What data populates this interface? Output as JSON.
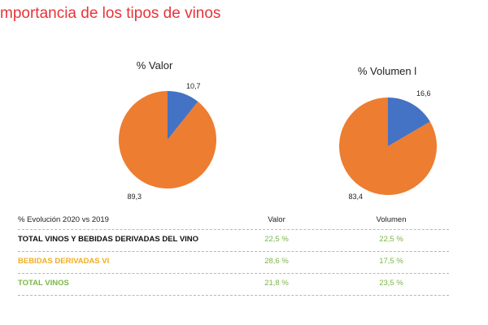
{
  "page": {
    "title": "mportancia de los tipos de vinos"
  },
  "colors": {
    "slice_small": "#4472c4",
    "slice_large": "#ed7d31",
    "title": "#e8333a",
    "green": "#7ab648",
    "amber": "#f0ad24"
  },
  "chart_data": [
    {
      "type": "pie",
      "title": "% Valor",
      "slices": [
        {
          "value": 10.7,
          "label": "10,7",
          "color": "#4472c4"
        },
        {
          "value": 89.3,
          "label": "89,3",
          "color": "#ed7d31"
        }
      ]
    },
    {
      "type": "pie",
      "title": "% Volumen l",
      "slices": [
        {
          "value": 16.6,
          "label": "16,6",
          "color": "#4472c4"
        },
        {
          "value": 83.4,
          "label": "83,4",
          "color": "#ed7d31"
        }
      ]
    }
  ],
  "table": {
    "header": {
      "label": "% Evolución 2020 vs 2019",
      "col1": "Valor",
      "col2": "Volumen"
    },
    "rows": [
      {
        "label": "TOTAL VINOS Y BEBIDAS DERIVADAS DEL VINO",
        "valor": "22,5 %",
        "volumen": "22,5 %"
      },
      {
        "label": "BEBIDAS DERIVADAS VI",
        "valor": "28,6 %",
        "volumen": "17,5 %"
      },
      {
        "label": "TOTAL VINOS",
        "valor": "21,8 %",
        "volumen": "23,5 %"
      }
    ]
  }
}
